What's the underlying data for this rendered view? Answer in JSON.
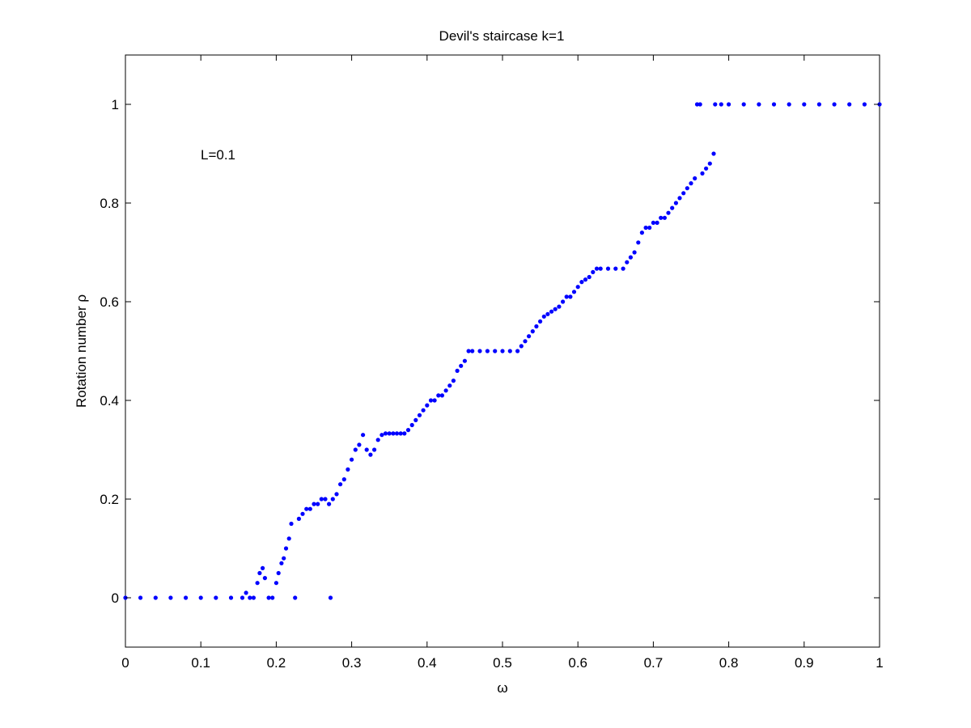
{
  "chart_data": {
    "type": "scatter",
    "title": "Devil's staircase k=1",
    "xlabel": "ω",
    "ylabel": "Rotation number ρ",
    "annotation": "L=0.1",
    "xlim": [
      0,
      1
    ],
    "ylim": [
      -0.1,
      1.1
    ],
    "xticks": [
      0,
      0.1,
      0.2,
      0.3,
      0.4,
      0.5,
      0.6,
      0.7,
      0.8,
      0.9,
      1
    ],
    "xtick_labels": [
      "0",
      "0.1",
      "0.2",
      "0.3",
      "0.4",
      "0.5",
      "0.6",
      "0.7",
      "0.8",
      "0.9",
      "1"
    ],
    "yticks": [
      0,
      0.2,
      0.4,
      0.6,
      0.8,
      1
    ],
    "ytick_labels": [
      "0",
      "0.2",
      "0.4",
      "0.6",
      "0.8",
      "1"
    ],
    "grid": false,
    "marker_color": "#0000ff",
    "series": [
      {
        "name": "",
        "points": [
          [
            0.0,
            0
          ],
          [
            0.02,
            0
          ],
          [
            0.04,
            0
          ],
          [
            0.06,
            0
          ],
          [
            0.08,
            0
          ],
          [
            0.1,
            0
          ],
          [
            0.12,
            0
          ],
          [
            0.14,
            0
          ],
          [
            0.155,
            0
          ],
          [
            0.16,
            0.01
          ],
          [
            0.165,
            0.0
          ],
          [
            0.17,
            0.0
          ],
          [
            0.175,
            0.03
          ],
          [
            0.178,
            0.05
          ],
          [
            0.182,
            0.06
          ],
          [
            0.185,
            0.04
          ],
          [
            0.19,
            0.0
          ],
          [
            0.195,
            0.0
          ],
          [
            0.2,
            0.03
          ],
          [
            0.203,
            0.05
          ],
          [
            0.207,
            0.07
          ],
          [
            0.21,
            0.08
          ],
          [
            0.213,
            0.1
          ],
          [
            0.217,
            0.12
          ],
          [
            0.22,
            0.15
          ],
          [
            0.225,
            0.0
          ],
          [
            0.23,
            0.16
          ],
          [
            0.235,
            0.17
          ],
          [
            0.24,
            0.18
          ],
          [
            0.245,
            0.18
          ],
          [
            0.25,
            0.19
          ],
          [
            0.255,
            0.19
          ],
          [
            0.26,
            0.2
          ],
          [
            0.265,
            0.2
          ],
          [
            0.27,
            0.19
          ],
          [
            0.272,
            0.0
          ],
          [
            0.275,
            0.2
          ],
          [
            0.28,
            0.21
          ],
          [
            0.285,
            0.23
          ],
          [
            0.29,
            0.24
          ],
          [
            0.295,
            0.26
          ],
          [
            0.3,
            0.28
          ],
          [
            0.305,
            0.3
          ],
          [
            0.31,
            0.31
          ],
          [
            0.315,
            0.33
          ],
          [
            0.32,
            0.3
          ],
          [
            0.325,
            0.29
          ],
          [
            0.33,
            0.3
          ],
          [
            0.335,
            0.32
          ],
          [
            0.34,
            0.33
          ],
          [
            0.345,
            0.333
          ],
          [
            0.35,
            0.333
          ],
          [
            0.355,
            0.333
          ],
          [
            0.36,
            0.333
          ],
          [
            0.365,
            0.333
          ],
          [
            0.37,
            0.333
          ],
          [
            0.375,
            0.34
          ],
          [
            0.38,
            0.35
          ],
          [
            0.385,
            0.36
          ],
          [
            0.39,
            0.37
          ],
          [
            0.395,
            0.38
          ],
          [
            0.4,
            0.39
          ],
          [
            0.405,
            0.4
          ],
          [
            0.41,
            0.4
          ],
          [
            0.415,
            0.41
          ],
          [
            0.42,
            0.41
          ],
          [
            0.425,
            0.42
          ],
          [
            0.43,
            0.43
          ],
          [
            0.435,
            0.44
          ],
          [
            0.44,
            0.46
          ],
          [
            0.445,
            0.47
          ],
          [
            0.45,
            0.48
          ],
          [
            0.455,
            0.5
          ],
          [
            0.46,
            0.5
          ],
          [
            0.47,
            0.5
          ],
          [
            0.48,
            0.5
          ],
          [
            0.49,
            0.5
          ],
          [
            0.5,
            0.5
          ],
          [
            0.51,
            0.5
          ],
          [
            0.52,
            0.5
          ],
          [
            0.525,
            0.51
          ],
          [
            0.53,
            0.52
          ],
          [
            0.535,
            0.53
          ],
          [
            0.54,
            0.54
          ],
          [
            0.545,
            0.55
          ],
          [
            0.55,
            0.56
          ],
          [
            0.555,
            0.57
          ],
          [
            0.56,
            0.575
          ],
          [
            0.565,
            0.58
          ],
          [
            0.57,
            0.585
          ],
          [
            0.575,
            0.59
          ],
          [
            0.58,
            0.6
          ],
          [
            0.585,
            0.61
          ],
          [
            0.59,
            0.61
          ],
          [
            0.595,
            0.62
          ],
          [
            0.6,
            0.63
          ],
          [
            0.605,
            0.64
          ],
          [
            0.61,
            0.645
          ],
          [
            0.615,
            0.65
          ],
          [
            0.62,
            0.66
          ],
          [
            0.625,
            0.667
          ],
          [
            0.63,
            0.667
          ],
          [
            0.64,
            0.667
          ],
          [
            0.65,
            0.667
          ],
          [
            0.66,
            0.667
          ],
          [
            0.665,
            0.68
          ],
          [
            0.67,
            0.69
          ],
          [
            0.675,
            0.7
          ],
          [
            0.68,
            0.72
          ],
          [
            0.685,
            0.74
          ],
          [
            0.69,
            0.75
          ],
          [
            0.695,
            0.75
          ],
          [
            0.7,
            0.76
          ],
          [
            0.705,
            0.76
          ],
          [
            0.71,
            0.77
          ],
          [
            0.715,
            0.77
          ],
          [
            0.72,
            0.78
          ],
          [
            0.725,
            0.79
          ],
          [
            0.73,
            0.8
          ],
          [
            0.735,
            0.81
          ],
          [
            0.74,
            0.82
          ],
          [
            0.745,
            0.83
          ],
          [
            0.75,
            0.84
          ],
          [
            0.755,
            0.85
          ],
          [
            0.758,
            1.0
          ],
          [
            0.762,
            1.0
          ],
          [
            0.765,
            0.86
          ],
          [
            0.77,
            0.87
          ],
          [
            0.775,
            0.88
          ],
          [
            0.78,
            0.9
          ],
          [
            0.782,
            1.0
          ],
          [
            0.79,
            1.0
          ],
          [
            0.8,
            1.0
          ],
          [
            0.82,
            1.0
          ],
          [
            0.84,
            1.0
          ],
          [
            0.86,
            1.0
          ],
          [
            0.88,
            1.0
          ],
          [
            0.9,
            1.0
          ],
          [
            0.92,
            1.0
          ],
          [
            0.94,
            1.0
          ],
          [
            0.96,
            1.0
          ],
          [
            0.98,
            1.0
          ],
          [
            1.0,
            1.0
          ]
        ]
      }
    ]
  }
}
